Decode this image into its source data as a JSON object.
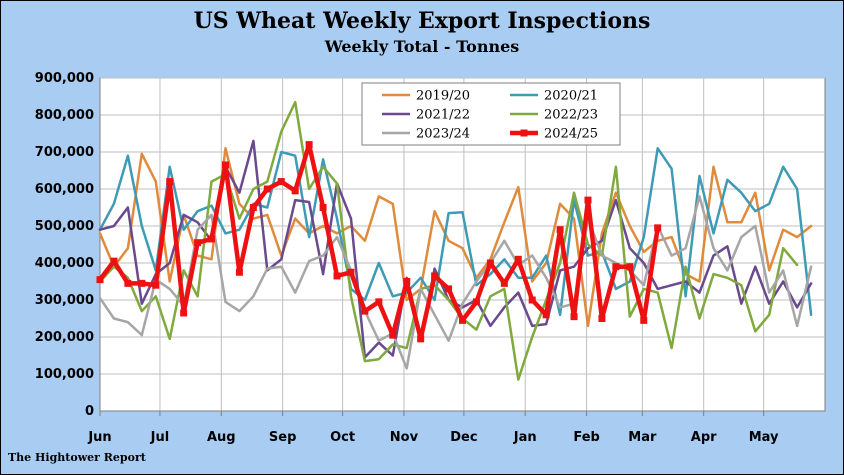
{
  "title": "US Wheat Weekly Export Inspections",
  "subtitle": "Weekly Total - Tonnes",
  "source": "The Hightower Report",
  "chart_data": {
    "type": "line",
    "title": "US Wheat Weekly Export Inspections",
    "subtitle": "Weekly Total - Tonnes",
    "xlabel": "",
    "ylabel": "",
    "ylim": [
      0,
      900000
    ],
    "yticks": [
      0,
      100000,
      200000,
      300000,
      400000,
      500000,
      600000,
      700000,
      800000,
      900000
    ],
    "ytick_labels": [
      "0",
      "100,000",
      "200,000",
      "300,000",
      "400,000",
      "500,000",
      "600,000",
      "700,000",
      "800,000",
      "900,000"
    ],
    "x_unit": "week",
    "xlim": [
      0,
      52
    ],
    "month_ticks": [
      {
        "label": "Jun",
        "week": 0
      },
      {
        "label": "Jul",
        "week": 4.3
      },
      {
        "label": "Aug",
        "week": 8.7
      },
      {
        "label": "Sep",
        "week": 13.1
      },
      {
        "label": "Oct",
        "week": 17.4
      },
      {
        "label": "Nov",
        "week": 21.8
      },
      {
        "label": "Dec",
        "week": 26.1
      },
      {
        "label": "Jan",
        "week": 30.5
      },
      {
        "label": "Feb",
        "week": 34.9
      },
      {
        "label": "Mar",
        "week": 38.9
      },
      {
        "label": "Apr",
        "week": 43.3
      },
      {
        "label": "May",
        "week": 47.6
      }
    ],
    "grid": true,
    "legend_position": "top-center",
    "series": [
      {
        "name": "2019/20",
        "color": "#e08b3c",
        "width": 2.5,
        "values": [
          480000,
          390000,
          440000,
          695000,
          620000,
          350000,
          530000,
          420000,
          410000,
          710000,
          560000,
          520000,
          530000,
          420000,
          520000,
          480000,
          500000,
          480000,
          500000,
          460000,
          580000,
          560000,
          300000,
          330000,
          540000,
          460000,
          440000,
          360000,
          410000,
          510000,
          605000,
          350000,
          400000,
          560000,
          520000,
          230000,
          480000,
          590000,
          500000,
          430000,
          460000,
          470000,
          370000,
          350000,
          660000,
          510000,
          510000,
          590000,
          380000,
          490000,
          470000,
          500000,
          null
        ]
      },
      {
        "name": "2020/21",
        "color": "#3f9ab5",
        "width": 2.5,
        "values": [
          490000,
          560000,
          690000,
          500000,
          380000,
          660000,
          490000,
          540000,
          555000,
          480000,
          490000,
          560000,
          550000,
          700000,
          690000,
          470000,
          680000,
          520000,
          330000,
          300000,
          400000,
          310000,
          320000,
          360000,
          300000,
          535000,
          537000,
          340000,
          370000,
          410000,
          360000,
          360000,
          420000,
          260000,
          570000,
          420000,
          430000,
          330000,
          350000,
          470000,
          710000,
          655000,
          310000,
          635000,
          480000,
          625000,
          590000,
          540000,
          560000,
          660000,
          600000,
          260000,
          null
        ]
      },
      {
        "name": "2021/22",
        "color": "#6a4a8c",
        "width": 2.5,
        "values": [
          490000,
          500000,
          550000,
          290000,
          370000,
          400000,
          530000,
          510000,
          460000,
          660000,
          590000,
          730000,
          380000,
          410000,
          570000,
          565000,
          370000,
          615000,
          520000,
          145000,
          185000,
          150000,
          360000,
          195000,
          385000,
          300000,
          280000,
          300000,
          230000,
          280000,
          320000,
          230000,
          235000,
          380000,
          390000,
          440000,
          460000,
          570000,
          440000,
          400000,
          330000,
          340000,
          350000,
          320000,
          420000,
          445000,
          290000,
          390000,
          290000,
          350000,
          280000,
          345000,
          null
        ]
      },
      {
        "name": "2022/23",
        "color": "#80aa3f",
        "width": 2.5,
        "values": [
          350000,
          390000,
          360000,
          270000,
          310000,
          195000,
          380000,
          310000,
          620000,
          640000,
          520000,
          600000,
          620000,
          755000,
          835000,
          600000,
          660000,
          615000,
          310000,
          135000,
          140000,
          180000,
          170000,
          330000,
          340000,
          300000,
          250000,
          220000,
          310000,
          330000,
          85000,
          200000,
          300000,
          400000,
          590000,
          450000,
          420000,
          660000,
          255000,
          330000,
          320000,
          170000,
          390000,
          250000,
          370000,
          360000,
          340000,
          215000,
          260000,
          440000,
          395000,
          null,
          null
        ]
      },
      {
        "name": "2023/24",
        "color": "#a6a6a6",
        "width": 2.5,
        "values": [
          305000,
          250000,
          240000,
          205000,
          355000,
          330000,
          285000,
          490000,
          530000,
          295000,
          270000,
          310000,
          385000,
          390000,
          320000,
          405000,
          420000,
          470000,
          380000,
          270000,
          190000,
          210000,
          115000,
          330000,
          260000,
          190000,
          290000,
          350000,
          400000,
          460000,
          395000,
          420000,
          360000,
          280000,
          290000,
          520000,
          420000,
          400000,
          380000,
          340000,
          500000,
          420000,
          440000,
          580000,
          440000,
          380000,
          470000,
          500000,
          320000,
          380000,
          230000,
          390000,
          null
        ]
      },
      {
        "name": "2024/25",
        "color": "#ee1111",
        "width": 4.5,
        "markers": true,
        "values": [
          355000,
          405000,
          345000,
          345000,
          340000,
          620000,
          265000,
          455000,
          465000,
          665000,
          375000,
          550000,
          600000,
          620000,
          595000,
          720000,
          550000,
          365000,
          375000,
          270000,
          295000,
          205000,
          350000,
          195000,
          365000,
          330000,
          245000,
          295000,
          400000,
          345000,
          410000,
          300000,
          260000,
          490000,
          255000,
          570000,
          250000,
          390000,
          390000,
          245000,
          495000,
          null,
          null,
          null,
          null,
          null,
          null,
          null,
          null,
          null,
          null,
          null,
          null
        ]
      }
    ]
  }
}
